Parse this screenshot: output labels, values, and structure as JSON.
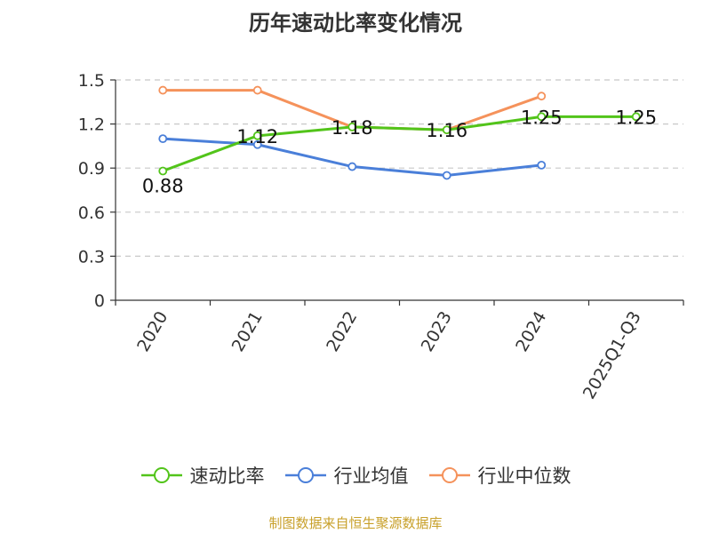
{
  "title": "历年速动比率变化情况",
  "source_note": "制图数据来自恒生聚源数据库",
  "chart_data": {
    "type": "line",
    "categories": [
      "2020",
      "2021",
      "2022",
      "2023",
      "2024",
      "2025Q1-Q3"
    ],
    "ylim": [
      0,
      1.5
    ],
    "yticks": [
      0,
      0.3,
      0.6,
      0.9,
      1.2,
      1.5
    ],
    "ytick_labels": [
      "0",
      "0.3",
      "0.6",
      "0.9",
      "1.2",
      "1.5"
    ],
    "grid": true,
    "legend_position": "bottom",
    "series": [
      {
        "name": "速动比率",
        "color": "#52c41a",
        "values": [
          0.88,
          1.12,
          1.18,
          1.16,
          1.25,
          1.25
        ],
        "labels": [
          "0.88",
          "1.12",
          "1.18",
          "1.16",
          "1.25",
          "1.25"
        ]
      },
      {
        "name": "行业均值",
        "color": "#4a7fd9",
        "values": [
          1.1,
          1.06,
          0.91,
          0.85,
          0.92,
          null
        ]
      },
      {
        "name": "行业中位数",
        "color": "#f5925b",
        "values": [
          1.43,
          1.43,
          1.18,
          1.16,
          1.39,
          null
        ]
      }
    ]
  }
}
